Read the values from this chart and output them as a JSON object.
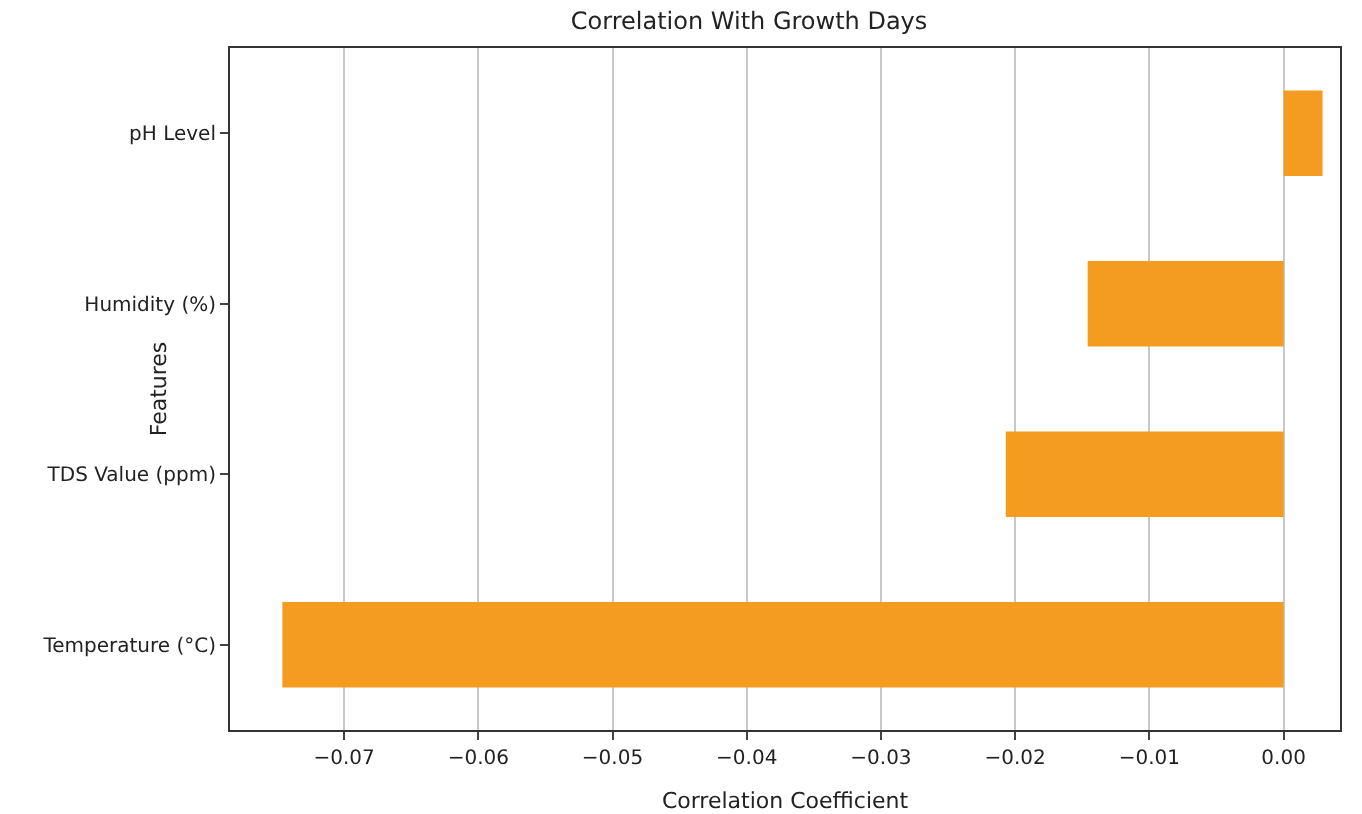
{
  "chart_data": {
    "type": "bar",
    "orientation": "horizontal",
    "title": "Correlation With Growth Days",
    "xlabel": "Correlation Coefficient",
    "ylabel": "Features",
    "categories": [
      "pH Level",
      "Humidity (%)",
      "TDS Value (ppm)",
      "Temperature (°C)"
    ],
    "values": [
      0.0029,
      -0.0146,
      -0.0207,
      -0.0746
    ],
    "color": "#f39c1f",
    "xlim": [
      -0.0785,
      0.0042
    ],
    "xticks": [
      {
        "value": -0.07,
        "label": "−0.07"
      },
      {
        "value": -0.06,
        "label": "−0.06"
      },
      {
        "value": -0.05,
        "label": "−0.05"
      },
      {
        "value": -0.04,
        "label": "−0.04"
      },
      {
        "value": -0.03,
        "label": "−0.03"
      },
      {
        "value": -0.02,
        "label": "−0.02"
      },
      {
        "value": -0.01,
        "label": "−0.01"
      },
      {
        "value": 0,
        "label": "0.00"
      }
    ],
    "grid": "x"
  }
}
